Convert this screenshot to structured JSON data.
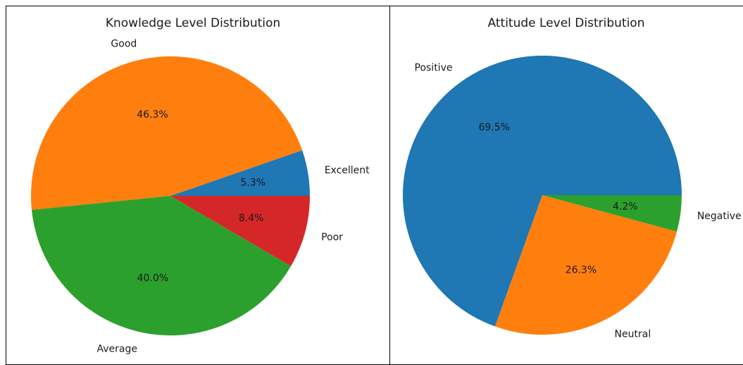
{
  "chart_data": [
    {
      "type": "pie",
      "title": "Knowledge Level Distribution",
      "slices": [
        {
          "label": "Excellent",
          "value": 5.3,
          "pct_label": "5.3%",
          "color": "#1f77b4"
        },
        {
          "label": "Good",
          "value": 46.3,
          "pct_label": "46.3%",
          "color": "#ff7f0e"
        },
        {
          "label": "Average",
          "value": 40.0,
          "pct_label": "40.0%",
          "color": "#2ca02c"
        },
        {
          "label": "Poor",
          "value": 8.4,
          "pct_label": "8.4%",
          "color": "#d62728"
        }
      ],
      "start_angle": 0,
      "direction": "counterclockwise"
    },
    {
      "type": "pie",
      "title": "Attitude Level Distribution",
      "slices": [
        {
          "label": "Positive",
          "value": 69.5,
          "pct_label": "69.5%",
          "color": "#1f77b4"
        },
        {
          "label": "Neutral",
          "value": 26.3,
          "pct_label": "26.3%",
          "color": "#ff7f0e"
        },
        {
          "label": "Negative",
          "value": 4.2,
          "pct_label": "4.2%",
          "color": "#2ca02c"
        }
      ],
      "start_angle": 0,
      "direction": "counterclockwise"
    }
  ]
}
